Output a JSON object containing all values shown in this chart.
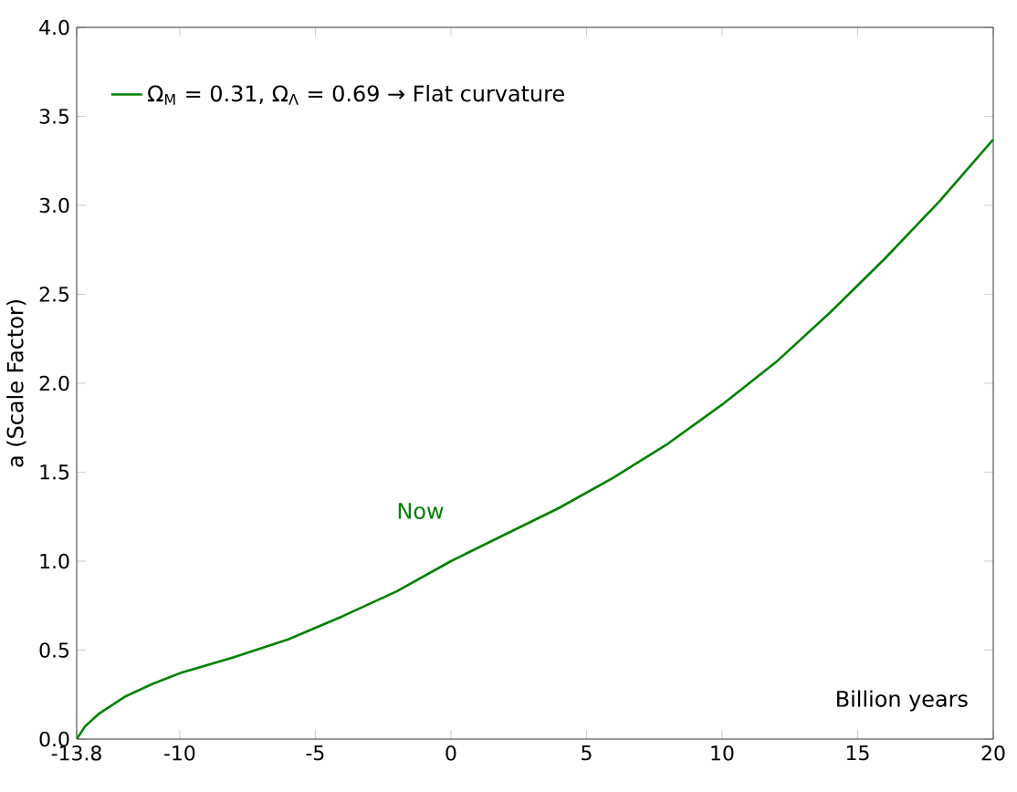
{
  "chart_data": {
    "type": "line",
    "xlabel": "Billion years",
    "ylabel": "a (Scale Factor)",
    "x": [
      -13.8,
      -13.5,
      -13,
      -12,
      -11,
      -10,
      -8,
      -6,
      -4,
      -2,
      0,
      2,
      4,
      6,
      8,
      10,
      12,
      14,
      16,
      18,
      20
    ],
    "series": [
      {
        "name": "Ω$_{M}$ = 0.31, Ω$_{Λ}$ = 0.69 → Flat curvature",
        "color": "#008000",
        "values": [
          0,
          0.07,
          0.14,
          0.24,
          0.31,
          0.37,
          0.46,
          0.56,
          0.69,
          0.83,
          1.0,
          1.15,
          1.3,
          1.47,
          1.66,
          1.88,
          2.12,
          2.4,
          2.7,
          3.02,
          3.37
        ]
      }
    ],
    "annotations": [
      "Now"
    ],
    "xlim": [
      -13.8,
      20
    ],
    "ylim": [
      0,
      4
    ],
    "xticks": [
      -13.8,
      -10,
      -5,
      0,
      5,
      10,
      15,
      20
    ],
    "yticks": [
      {
        "value": 0,
        "label": "0.0"
      },
      {
        "value": 0.5,
        "label": "0.5"
      },
      {
        "value": 1,
        "label": "1.0"
      },
      {
        "value": 1.5,
        "label": "1.5"
      },
      {
        "value": 2,
        "label": "2.0"
      },
      {
        "value": 2.5,
        "label": "2.5"
      },
      {
        "value": 3,
        "label": "3.0"
      },
      {
        "value": 3.5,
        "label": "3.5"
      },
      {
        "value": 4,
        "label": "4.0"
      }
    ],
    "grid": false,
    "legend": "top left",
    "marker": "none",
    "line_style": "solid"
  }
}
